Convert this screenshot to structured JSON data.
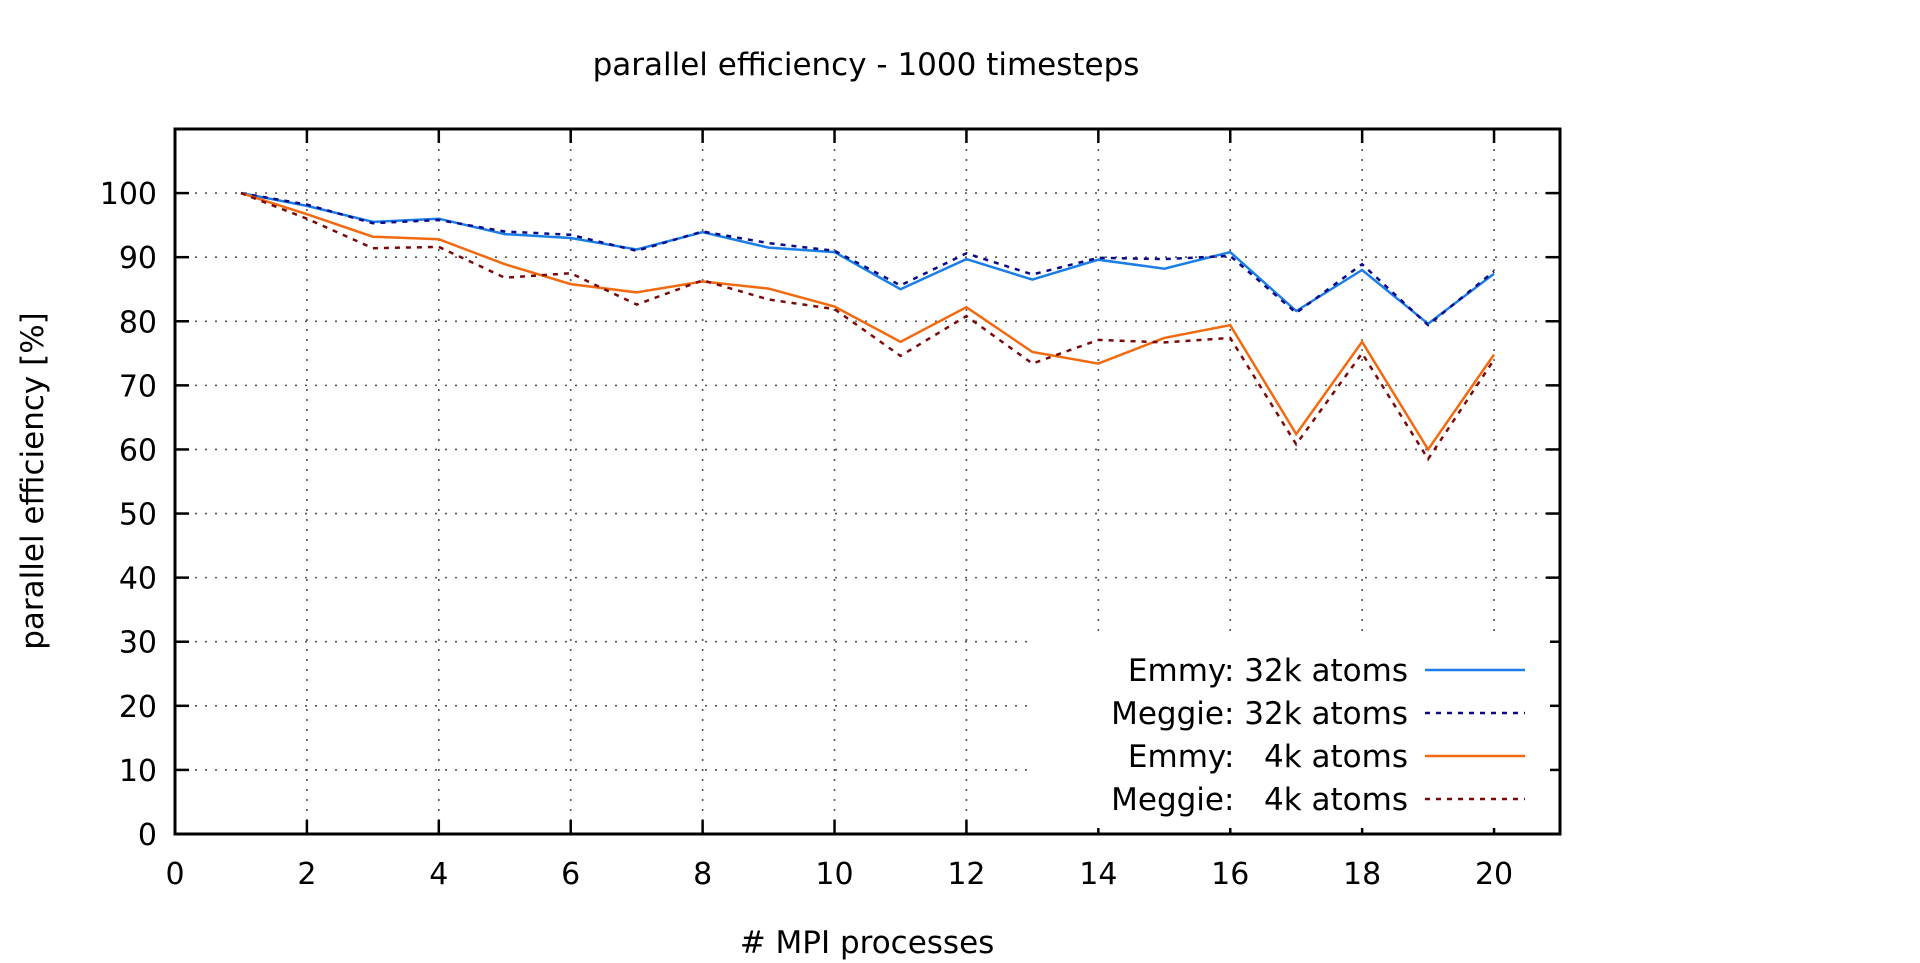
{
  "chart_data": {
    "type": "line",
    "title": "parallel efficiency - 1000 timesteps",
    "xlabel": "# MPI processes",
    "ylabel": "parallel efficiency [%]",
    "xlim": [
      0,
      21
    ],
    "ylim": [
      0,
      100
    ],
    "xticks": [
      0,
      2,
      4,
      6,
      8,
      10,
      12,
      14,
      16,
      18,
      20
    ],
    "yticks": [
      0,
      10,
      20,
      30,
      40,
      50,
      60,
      70,
      80,
      90,
      100
    ],
    "xtick_labels": [
      "0",
      "2",
      "4",
      "6",
      "8",
      "10",
      "12",
      "14",
      "16",
      "18",
      "20"
    ],
    "ytick_labels": [
      "0",
      "10",
      "20",
      "30",
      "40",
      "50",
      "60",
      "70",
      "80",
      "90",
      "100"
    ],
    "grid": true,
    "legend_position": "bottom-right",
    "x": [
      1,
      2,
      3,
      4,
      5,
      6,
      7,
      8,
      9,
      10,
      11,
      12,
      13,
      14,
      15,
      16,
      17,
      18,
      19,
      20
    ],
    "series": [
      {
        "name": "Emmy: 32k atoms",
        "color": "#1a7ee6",
        "dash": "solid",
        "values": [
          100,
          98,
          95.5,
          96,
          93.6,
          93,
          91.2,
          93.9,
          91.5,
          90.8,
          85,
          89.7,
          86.5,
          89.6,
          88.2,
          90.8,
          81.6,
          88,
          79.6,
          87.4
        ]
      },
      {
        "name": "Meggie: 32k atoms",
        "color": "#0b0b8a",
        "dash": "dotted",
        "values": [
          100,
          98.2,
          95.3,
          95.8,
          94,
          93.5,
          91,
          94,
          92.2,
          91,
          85.6,
          90.6,
          87.3,
          89.9,
          89.7,
          90.2,
          81.3,
          88.9,
          79.4,
          87.8
        ]
      },
      {
        "name": "Emmy:   4k atoms",
        "color": "#f26a10",
        "dash": "solid",
        "values": [
          100,
          96.7,
          93.2,
          92.8,
          88.9,
          85.8,
          84.5,
          86.2,
          85.1,
          82.3,
          76.8,
          82.2,
          75.2,
          73.4,
          77.4,
          79.4,
          62.4,
          76.8,
          60,
          74.8
        ]
      },
      {
        "name": "Meggie:   4k atoms",
        "color": "#7a0a0a",
        "dash": "dotted",
        "values": [
          100,
          96,
          91.4,
          91.6,
          86.8,
          87.5,
          82.6,
          86.4,
          83.4,
          81.9,
          74.6,
          80.8,
          73.4,
          77.1,
          76.7,
          77.4,
          60.8,
          75,
          58.5,
          74
        ]
      }
    ]
  }
}
